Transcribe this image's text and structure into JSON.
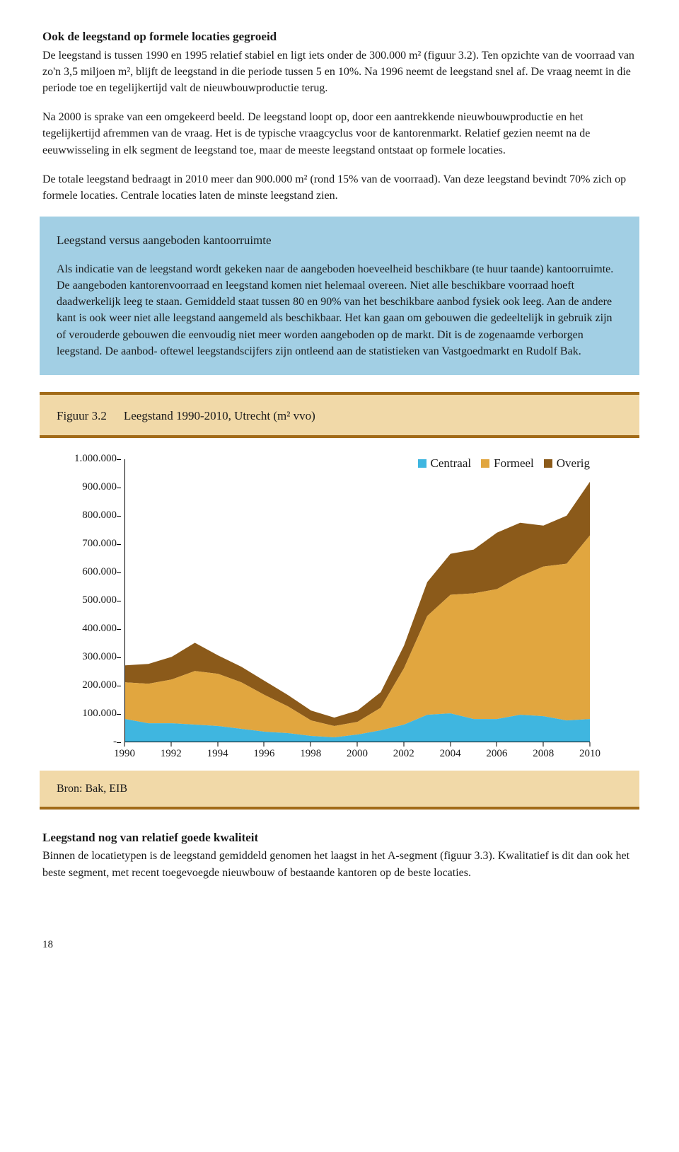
{
  "section1": {
    "heading": "Ook de leegstand op formele locaties gegroeid",
    "p1": "De leegstand is tussen 1990 en 1995 relatief stabiel en ligt iets onder de 300.000 m² (figuur 3.2). Ten opzichte van de voorraad van zo'n 3,5 miljoen m², blijft de leegstand in die periode tussen 5 en 10%. Na 1996 neemt de leegstand snel af. De vraag neemt in die periode toe en tegelijkertijd valt de nieuwbouwproductie terug.",
    "p2": "Na 2000 is sprake van een omgekeerd beeld. De leegstand loopt op, door een aantrekkende nieuwbouwproductie en het tegelijkertijd afremmen van de vraag. Het is de typische vraagcyclus voor de kantorenmarkt. Relatief gezien neemt na de eeuwwisseling in elk segment de leegstand toe, maar de meeste leegstand ontstaat op formele locaties.",
    "p3": "De totale leegstand bedraagt in 2010 meer dan 900.000 m² (rond 15% van de voorraad). Van deze leegstand bevindt 70% zich op formele locaties. Centrale locaties laten de minste leegstand zien."
  },
  "bluebox": {
    "title": "Leegstand versus aangeboden kantoorruimte",
    "body": "Als indicatie van de leegstand wordt gekeken naar de aangeboden hoeveelheid beschikbare (te huur taande) kantoorruimte. De aangeboden kantorenvoorraad en leegstand komen niet helemaal overeen. Niet alle beschikbare voorraad hoeft daadwerkelijk leeg te staan. Gemiddeld staat tussen 80 en 90% van het beschikbare aanbod fysiek ook leeg. Aan de andere kant is ook weer niet alle leegstand aangemeld als beschikbaar. Het kan gaan om gebouwen die gedeeltelijk in gebruik zijn of verouderde gebouwen die eenvoudig niet meer worden aangeboden op de markt. Dit is de zogenaamde verborgen leegstand. De aanbod- oftewel leegstandscijfers zijn ontleend aan de statistieken van Vastgoedmarkt en Rudolf Bak."
  },
  "figure": {
    "label": "Figuur 3.2",
    "title": "Leegstand 1990-2010, Utrecht (m² vvo)",
    "source": "Bron: Bak, EIB"
  },
  "chart": {
    "type": "stacked-area",
    "x_years": [
      1990,
      1991,
      1992,
      1993,
      1994,
      1995,
      1996,
      1997,
      1998,
      1999,
      2000,
      2001,
      2002,
      2003,
      2004,
      2005,
      2006,
      2007,
      2008,
      2009,
      2010
    ],
    "x_ticks": [
      1990,
      1992,
      1994,
      1996,
      1998,
      2000,
      2002,
      2004,
      2006,
      2008,
      2010
    ],
    "y_ticks": [
      "-",
      "100.000",
      "200.000",
      "300.000",
      "400.000",
      "500.000",
      "600.000",
      "700.000",
      "800.000",
      "900.000",
      "1.000.000"
    ],
    "ylim": [
      0,
      1000000
    ],
    "series": [
      {
        "name": "Centraal",
        "color": "#3fb6e0",
        "values": [
          80000,
          65000,
          65000,
          60000,
          55000,
          45000,
          35000,
          30000,
          20000,
          15000,
          25000,
          40000,
          60000,
          95000,
          100000,
          80000,
          80000,
          95000,
          90000,
          75000,
          80000
        ]
      },
      {
        "name": "Formeel",
        "color": "#e1a63f",
        "values": [
          130000,
          140000,
          155000,
          190000,
          185000,
          165000,
          130000,
          95000,
          55000,
          40000,
          45000,
          80000,
          200000,
          350000,
          420000,
          445000,
          460000,
          490000,
          530000,
          555000,
          650000
        ]
      },
      {
        "name": "Overig",
        "color": "#8b5a1a",
        "values": [
          60000,
          70000,
          80000,
          100000,
          65000,
          55000,
          50000,
          40000,
          35000,
          30000,
          40000,
          55000,
          80000,
          120000,
          145000,
          155000,
          200000,
          190000,
          145000,
          170000,
          190000
        ]
      }
    ],
    "legend_labels": [
      "Centraal",
      "Formeel",
      "Overig"
    ],
    "legend_colors": [
      "#3fb6e0",
      "#e1a63f",
      "#8b5a1a"
    ],
    "background_color": "#ffffff",
    "axis_color": "#000000"
  },
  "section2": {
    "heading": "Leegstand nog van relatief goede kwaliteit",
    "p1": "Binnen de locatietypen is de leegstand gemiddeld genomen het laagst in het A-segment (figuur 3.3). Kwalitatief is dit dan ook het beste segment, met recent toegevoegde nieuwbouw of bestaande kantoren op de beste locaties."
  },
  "page_number": "18"
}
